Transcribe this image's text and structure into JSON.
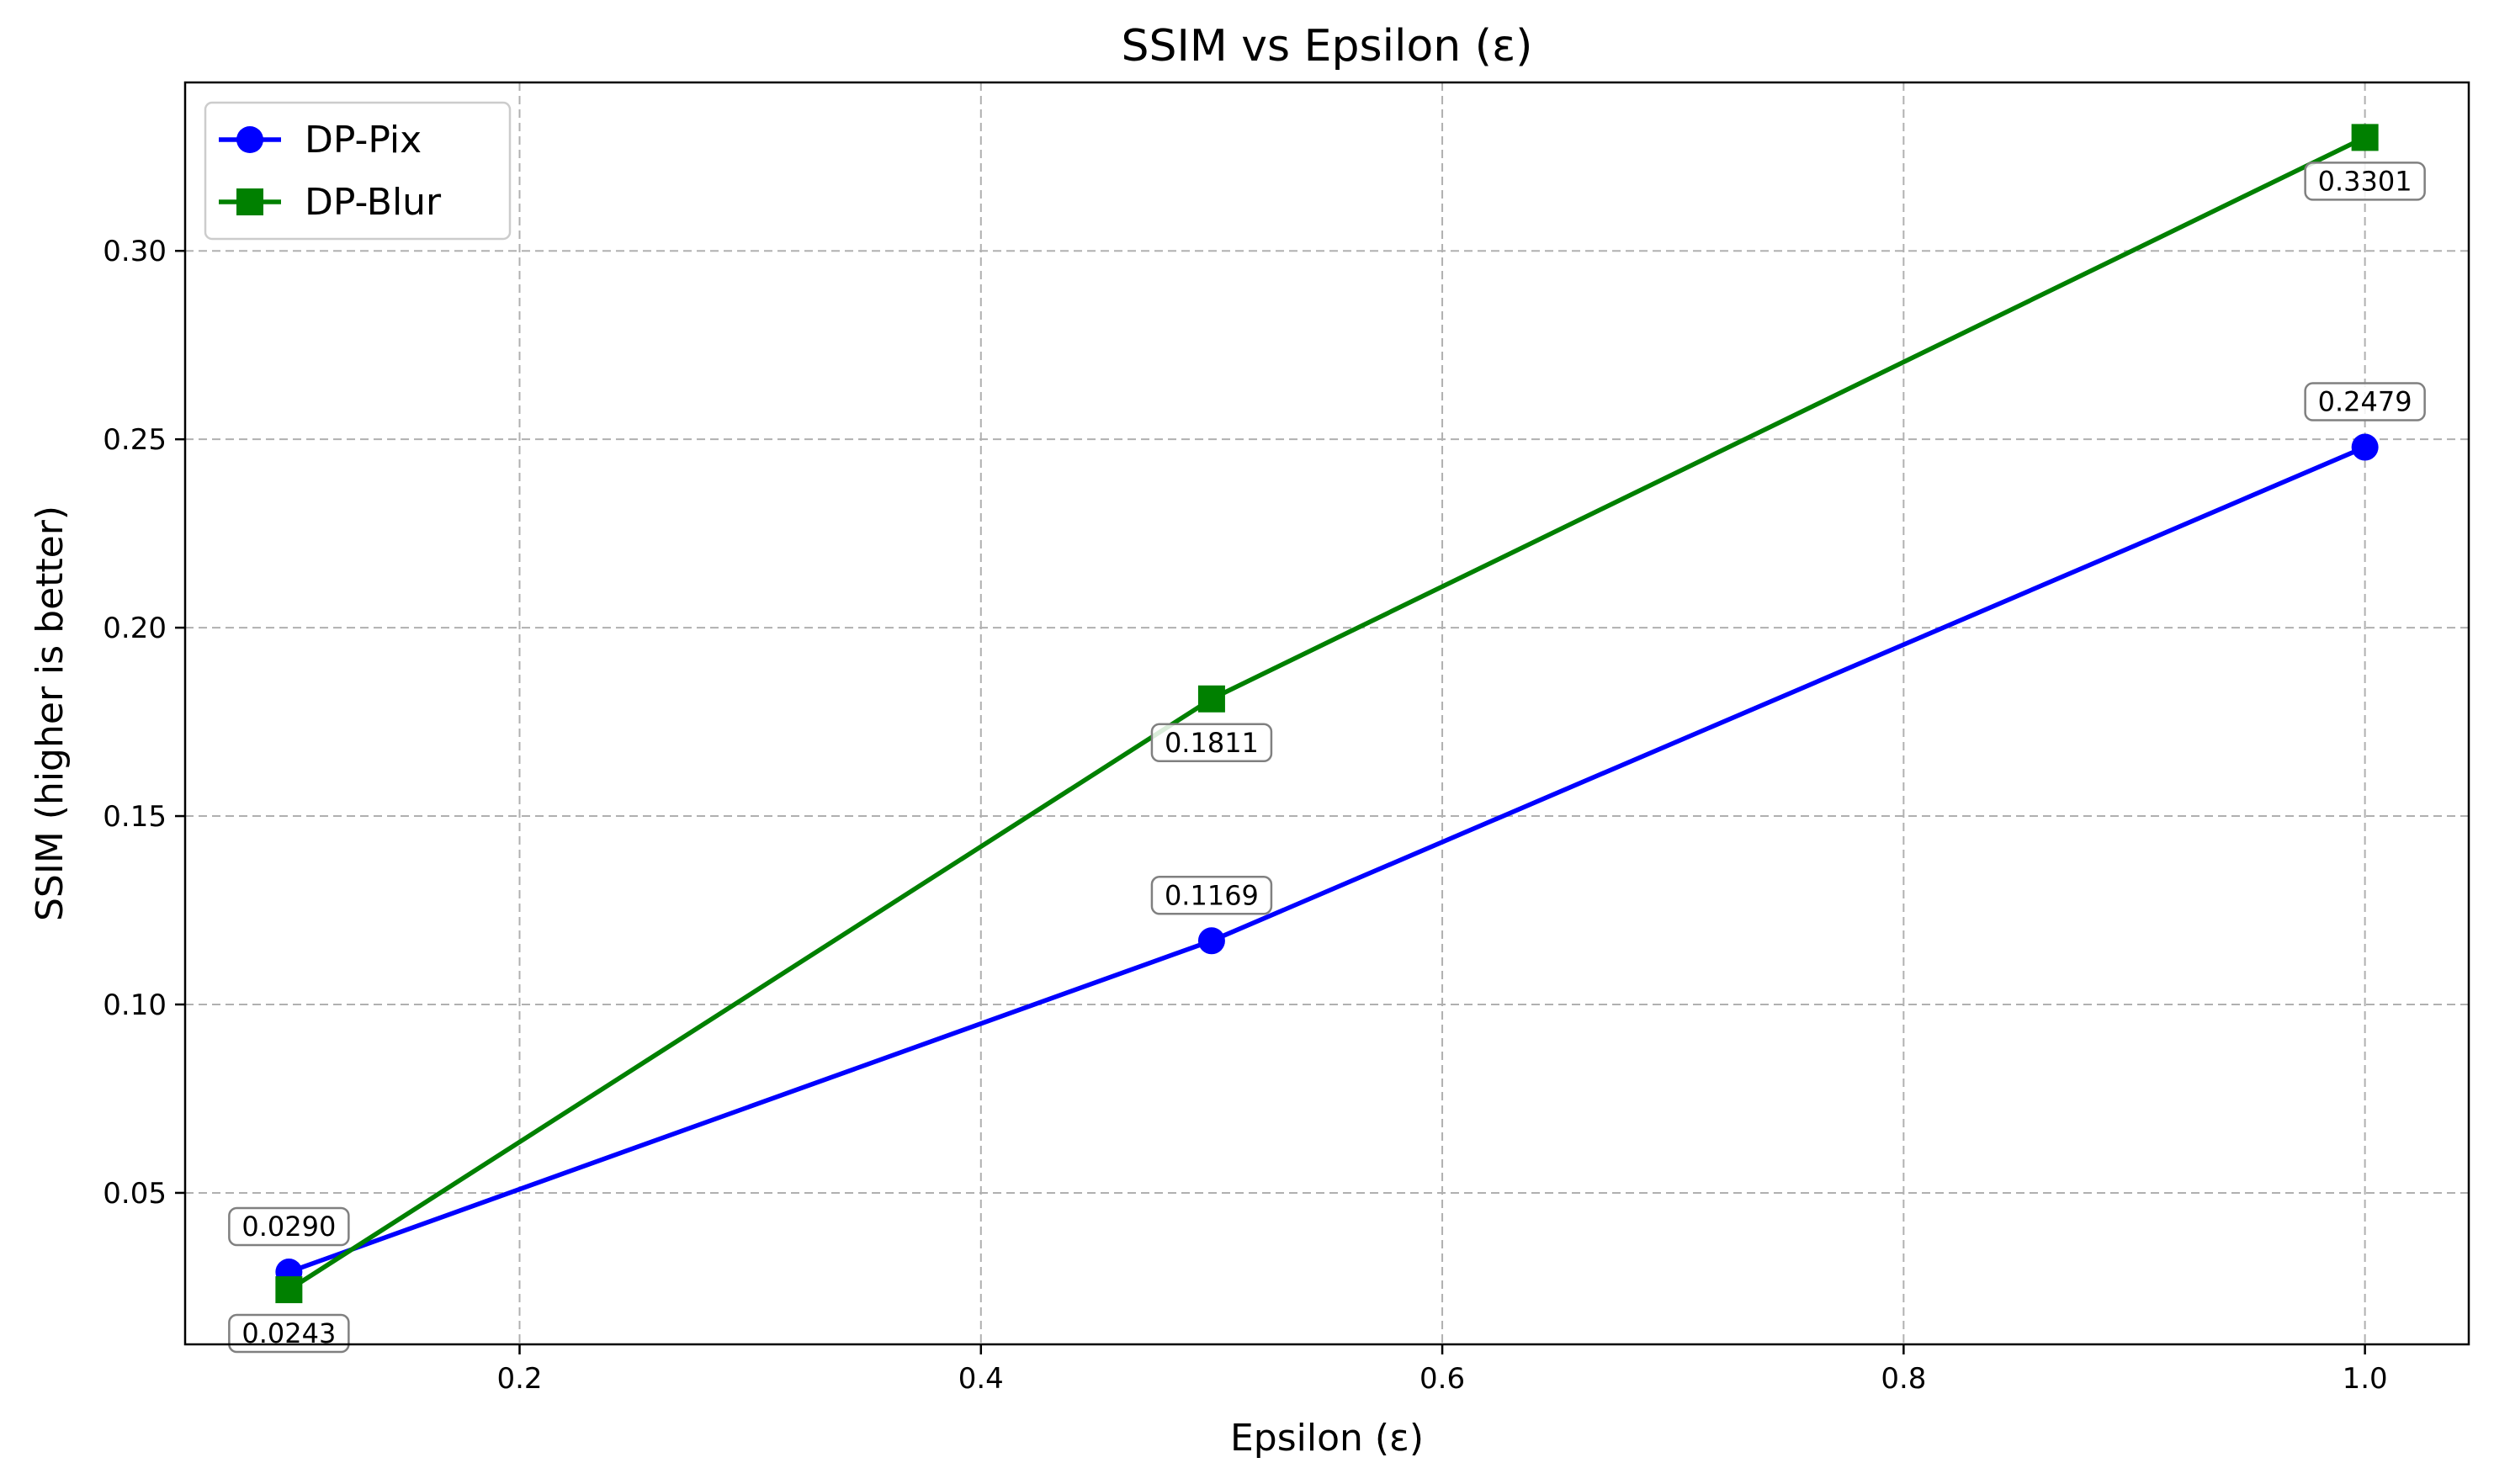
{
  "chart_data": {
    "type": "line",
    "title": "SSIM vs Epsilon (ε)",
    "xlabel": "Epsilon (ε)",
    "ylabel": "SSIM (higher is better)",
    "x": [
      0.1,
      0.5,
      1.0
    ],
    "xlim": [
      0.055,
      1.045
    ],
    "ylim": [
      0.0098,
      0.3447
    ],
    "xticks": [
      0.2,
      0.4,
      0.6,
      0.8,
      1.0
    ],
    "xtick_labels": [
      "0.2",
      "0.4",
      "0.6",
      "0.8",
      "1.0"
    ],
    "yticks": [
      0.05,
      0.1,
      0.15,
      0.2,
      0.25,
      0.3
    ],
    "ytick_labels": [
      "0.05",
      "0.10",
      "0.15",
      "0.20",
      "0.25",
      "0.30"
    ],
    "grid": true,
    "legend_position": "top-left",
    "series": [
      {
        "name": "DP-Pix",
        "color": "#0000ff",
        "marker": "circle",
        "values": [
          0.029,
          0.1169,
          0.2479
        ],
        "labels": [
          "0.0290",
          "0.1169",
          "0.2479"
        ],
        "label_side": "above"
      },
      {
        "name": "DP-Blur",
        "color": "#008000",
        "marker": "square",
        "values": [
          0.0243,
          0.1811,
          0.3301
        ],
        "labels": [
          "0.0243",
          "0.1811",
          "0.3301"
        ],
        "label_side": "below"
      }
    ]
  }
}
